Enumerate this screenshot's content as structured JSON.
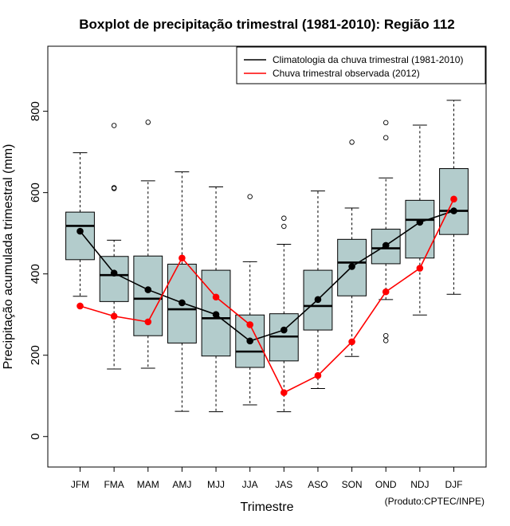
{
  "chart_data": {
    "type": "boxplot",
    "title": "Boxplot de precipitação trimestral (1981-2010): Região 112",
    "xlabel": "Trimestre",
    "ylabel": "Precipitação acumulada trimestral (mm)",
    "ylim": [
      -75,
      960
    ],
    "yticks": [
      0,
      200,
      400,
      600,
      800
    ],
    "grid": false,
    "legend_position": "top-right",
    "credit": "(Produto:CPTEC/INPE)",
    "categories": [
      "JFM",
      "FMA",
      "MAM",
      "AMJ",
      "MJJ",
      "JJA",
      "JAS",
      "ASO",
      "SON",
      "OND",
      "NDJ",
      "DJF"
    ],
    "boxes": [
      {
        "whisker_low": 345,
        "q1": 435,
        "median": 518,
        "q3": 552,
        "whisker_high": 698,
        "outliers": []
      },
      {
        "whisker_low": 166,
        "q1": 332,
        "median": 397,
        "q3": 443,
        "whisker_high": 483,
        "outliers": [
          610,
          612,
          765
        ]
      },
      {
        "whisker_low": 168,
        "q1": 248,
        "median": 339,
        "q3": 444,
        "whisker_high": 629,
        "outliers": [
          773
        ]
      },
      {
        "whisker_low": 62,
        "q1": 230,
        "median": 313,
        "q3": 424,
        "whisker_high": 651,
        "outliers": []
      },
      {
        "whisker_low": 61,
        "q1": 198,
        "median": 291,
        "q3": 409,
        "whisker_high": 614,
        "outliers": []
      },
      {
        "whisker_low": 78,
        "q1": 170,
        "median": 209,
        "q3": 299,
        "whisker_high": 430,
        "outliers": [
          590
        ]
      },
      {
        "whisker_low": 61,
        "q1": 186,
        "median": 246,
        "q3": 302,
        "whisker_high": 473,
        "outliers": [
          517,
          537
        ]
      },
      {
        "whisker_low": 118,
        "q1": 262,
        "median": 321,
        "q3": 409,
        "whisker_high": 604,
        "outliers": []
      },
      {
        "whisker_low": 197,
        "q1": 346,
        "median": 428,
        "q3": 485,
        "whisker_high": 562,
        "outliers": [
          724
        ]
      },
      {
        "whisker_low": 337,
        "q1": 425,
        "median": 463,
        "q3": 510,
        "whisker_high": 636,
        "outliers": [
          236,
          248,
          735,
          772
        ]
      },
      {
        "whisker_low": 299,
        "q1": 439,
        "median": 533,
        "q3": 581,
        "whisker_high": 766,
        "outliers": []
      },
      {
        "whisker_low": 350,
        "q1": 497,
        "median": 555,
        "q3": 659,
        "whisker_high": 827,
        "outliers": []
      }
    ],
    "series": [
      {
        "name": "Climatologia da chuva trimestral (1981-2010)",
        "color": "#000000",
        "values": [
          505,
          402,
          361,
          329,
          300,
          235,
          262,
          337,
          418,
          470,
          527,
          555
        ]
      },
      {
        "name": "Chuva trimestral observada (2012)",
        "color": "#ff0000",
        "values": [
          321,
          296,
          282,
          439,
          343,
          275,
          108,
          150,
          233,
          356,
          414,
          584
        ]
      }
    ],
    "box_fill": "#b3cccc"
  }
}
